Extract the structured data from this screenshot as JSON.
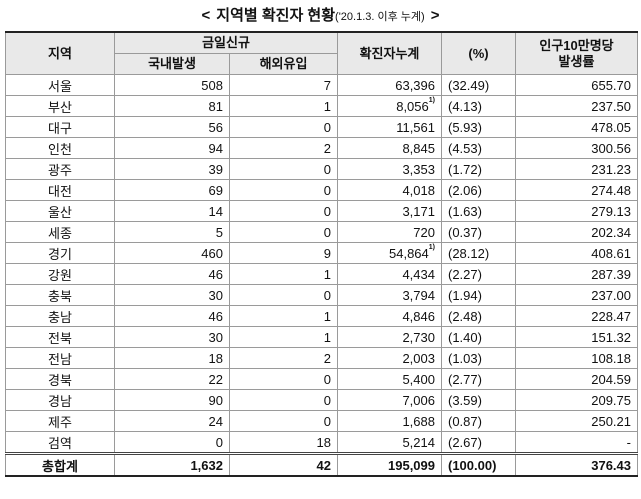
{
  "title": {
    "open": "<",
    "main": "지역별 확진자 현황",
    "sub": "('20.1.3. 이후 누계)",
    "close": ">"
  },
  "table": {
    "headers": {
      "region": "지역",
      "new": "금일신규",
      "domestic": "국내발생",
      "overseas": "해외유입",
      "cumulative": "확진자누계",
      "percent": "(%)",
      "rate": "인구10만명당 발생률"
    },
    "rows": [
      {
        "region": "서울",
        "domestic": "508",
        "overseas": "7",
        "cumulative": "63,396",
        "percent": "(32.49)",
        "rate": "655.70"
      },
      {
        "region": "부산",
        "domestic": "81",
        "overseas": "1",
        "cumulative": "8,056",
        "note": "1)",
        "percent": "(4.13)",
        "rate": "237.50"
      },
      {
        "region": "대구",
        "domestic": "56",
        "overseas": "0",
        "cumulative": "11,561",
        "percent": "(5.93)",
        "rate": "478.05"
      },
      {
        "region": "인천",
        "domestic": "94",
        "overseas": "2",
        "cumulative": "8,845",
        "percent": "(4.53)",
        "rate": "300.56"
      },
      {
        "region": "광주",
        "domestic": "39",
        "overseas": "0",
        "cumulative": "3,353",
        "percent": "(1.72)",
        "rate": "231.23"
      },
      {
        "region": "대전",
        "domestic": "69",
        "overseas": "0",
        "cumulative": "4,018",
        "percent": "(2.06)",
        "rate": "274.48"
      },
      {
        "region": "울산",
        "domestic": "14",
        "overseas": "0",
        "cumulative": "3,171",
        "percent": "(1.63)",
        "rate": "279.13"
      },
      {
        "region": "세종",
        "domestic": "5",
        "overseas": "0",
        "cumulative": "720",
        "percent": "(0.37)",
        "rate": "202.34"
      },
      {
        "region": "경기",
        "domestic": "460",
        "overseas": "9",
        "cumulative": "54,864",
        "note": "1)",
        "percent": "(28.12)",
        "rate": "408.61"
      },
      {
        "region": "강원",
        "domestic": "46",
        "overseas": "1",
        "cumulative": "4,434",
        "percent": "(2.27)",
        "rate": "287.39"
      },
      {
        "region": "충북",
        "domestic": "30",
        "overseas": "0",
        "cumulative": "3,794",
        "percent": "(1.94)",
        "rate": "237.00"
      },
      {
        "region": "충남",
        "domestic": "46",
        "overseas": "1",
        "cumulative": "4,846",
        "percent": "(2.48)",
        "rate": "228.47"
      },
      {
        "region": "전북",
        "domestic": "30",
        "overseas": "1",
        "cumulative": "2,730",
        "percent": "(1.40)",
        "rate": "151.32"
      },
      {
        "region": "전남",
        "domestic": "18",
        "overseas": "2",
        "cumulative": "2,003",
        "percent": "(1.03)",
        "rate": "108.18"
      },
      {
        "region": "경북",
        "domestic": "22",
        "overseas": "0",
        "cumulative": "5,400",
        "percent": "(2.77)",
        "rate": "204.59"
      },
      {
        "region": "경남",
        "domestic": "90",
        "overseas": "0",
        "cumulative": "7,006",
        "percent": "(3.59)",
        "rate": "209.75"
      },
      {
        "region": "제주",
        "domestic": "24",
        "overseas": "0",
        "cumulative": "1,688",
        "percent": "(0.87)",
        "rate": "250.21"
      },
      {
        "region": "검역",
        "domestic": "0",
        "overseas": "18",
        "cumulative": "5,214",
        "percent": "(2.67)",
        "rate": "-"
      }
    ],
    "total": {
      "region": "총합계",
      "domestic": "1,632",
      "overseas": "42",
      "cumulative": "195,099",
      "percent": "(100.00)",
      "rate": "376.43"
    }
  }
}
